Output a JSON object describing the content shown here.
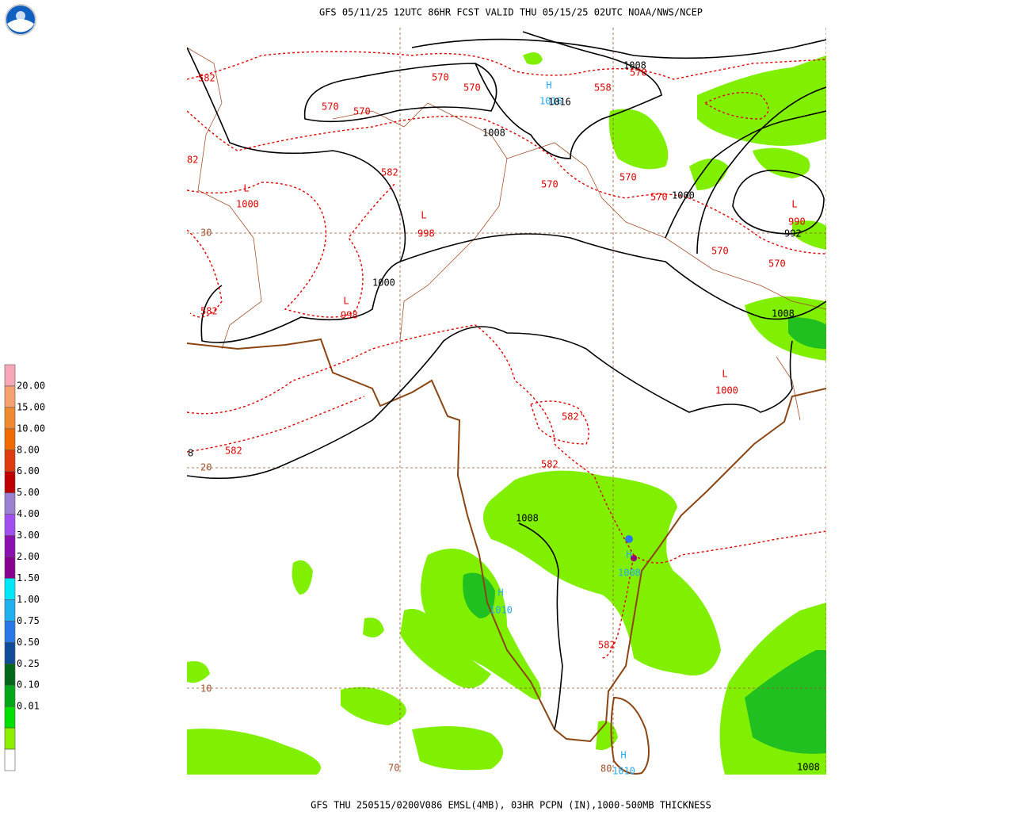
{
  "header": {
    "title": "GFS 05/11/25 12UTC 86HR FCST VALID THU 05/15/25 02UTC NOAA/NWS/NCEP"
  },
  "footer": {
    "caption": "GFS THU 250515/0200V086 EMSL(4MB), 03HR PCPN (IN),1000-500MB THICKNESS"
  },
  "legend": {
    "labels": [
      "20.00",
      "15.00",
      "10.00",
      "8.00",
      "6.00",
      "5.00",
      "4.00",
      "3.00",
      "2.00",
      "1.50",
      "1.00",
      "0.75",
      "0.50",
      "0.25",
      "0.10",
      "0.01"
    ],
    "colors": [
      "#f7a8b8",
      "#f4a070",
      "#f08a30",
      "#f06a00",
      "#e03a10",
      "#c00000",
      "#9a80d0",
      "#a050f0",
      "#8a10b0",
      "#880090",
      "#00e8f8",
      "#20b0f0",
      "#2878e8",
      "#104c98",
      "#006818",
      "#00a818",
      "#00e000",
      "#8cf000",
      "#ffffff"
    ]
  },
  "map": {
    "latitude_labels": [
      "30",
      "20",
      "10"
    ],
    "longitude_labels": [
      "70",
      "80"
    ],
    "pressure_centers": [
      {
        "symbol": "L",
        "value": 1000
      },
      {
        "symbol": "L",
        "value": 998
      },
      {
        "symbol": "L",
        "value": 998
      },
      {
        "symbol": "L",
        "value": 1000
      },
      {
        "symbol": "L",
        "value": 990
      },
      {
        "symbol": "H",
        "value": 1016
      },
      {
        "symbol": "H",
        "value": 1010
      },
      {
        "symbol": "H",
        "value": 1008
      },
      {
        "symbol": "H",
        "value": 1010
      }
    ],
    "isobar_labels": [
      "1008",
      "1016",
      "1008",
      "1000",
      "992",
      "1000",
      "1008",
      "1008",
      "8",
      "1008"
    ],
    "thickness_labels": [
      "582",
      "570",
      "570",
      "558",
      "570",
      "570",
      "570",
      "82",
      "582",
      "570",
      "570",
      "570",
      "570",
      "570",
      "582",
      "582'",
      "582",
      "582",
      "582"
    ]
  }
}
